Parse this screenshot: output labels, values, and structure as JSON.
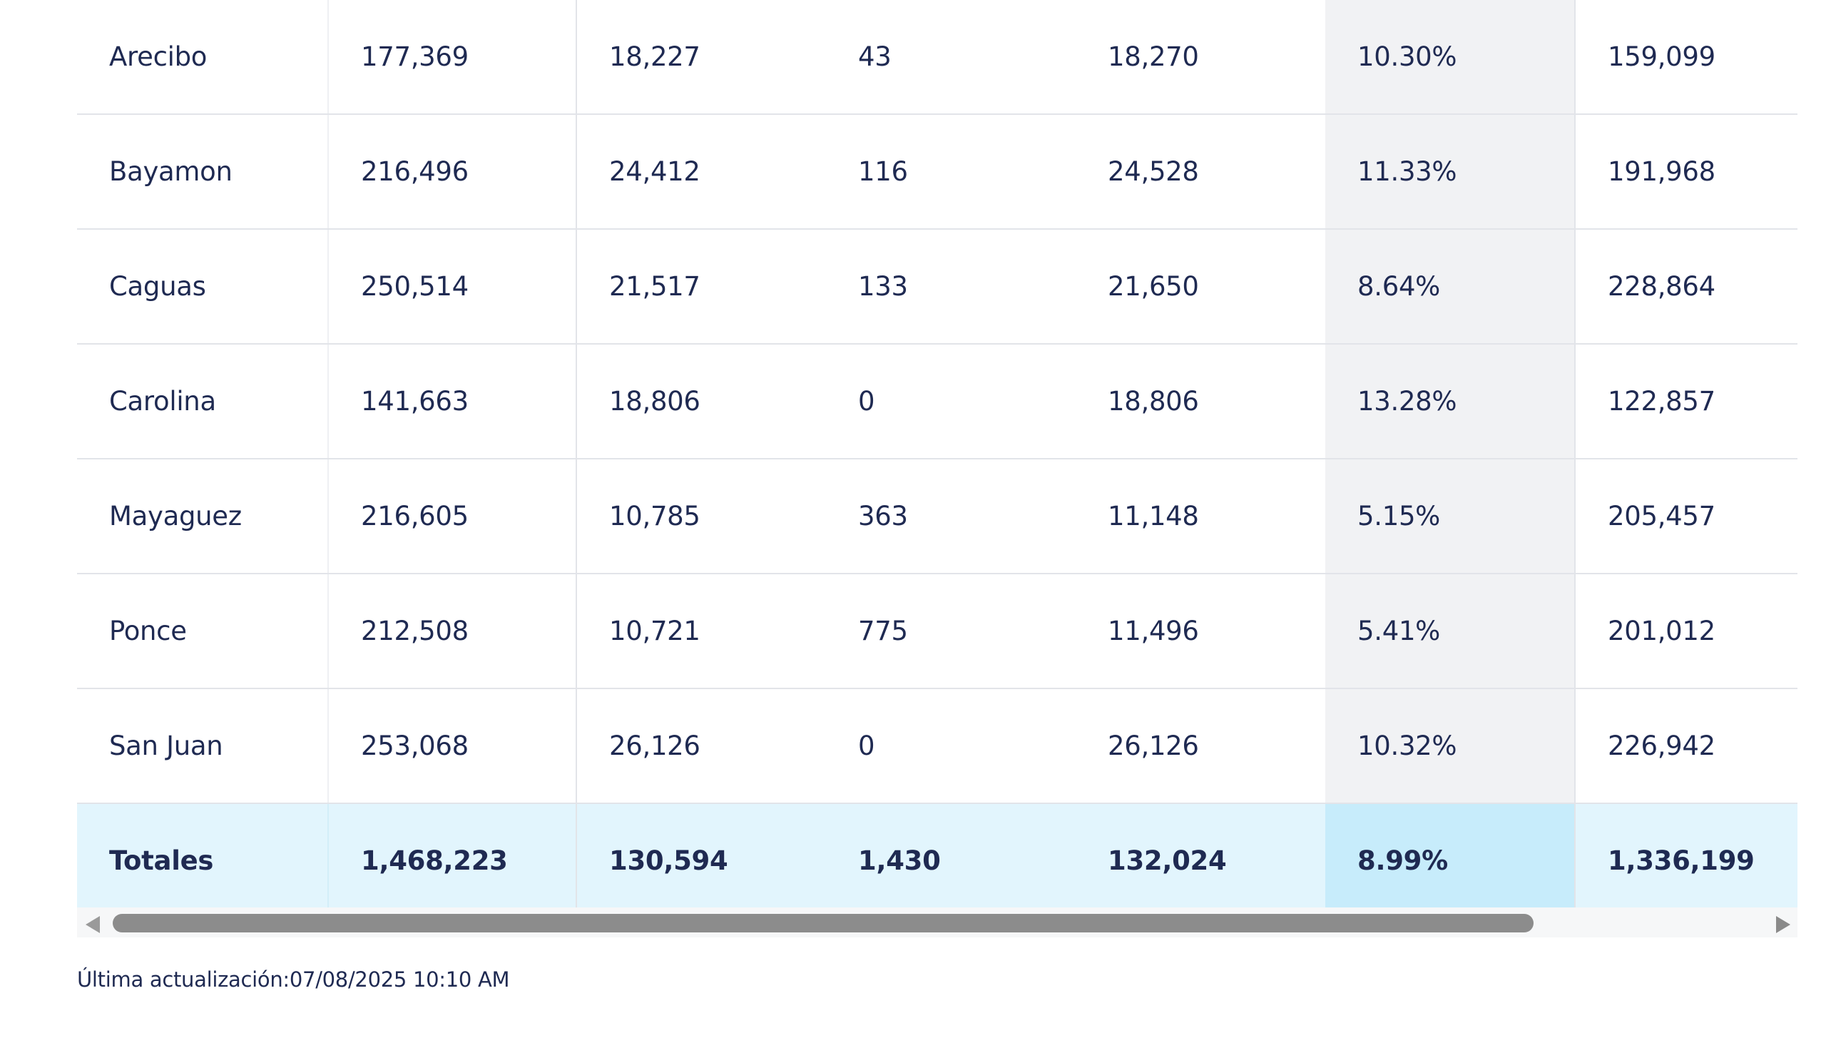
{
  "table": {
    "rows": [
      [
        "Arecibo",
        "177,369",
        "18,227",
        "43",
        "18,270",
        "10.30%",
        "159,099"
      ],
      [
        "Bayamon",
        "216,496",
        "24,412",
        "116",
        "24,528",
        "11.33%",
        "191,968"
      ],
      [
        "Caguas",
        "250,514",
        "21,517",
        "133",
        "21,650",
        "8.64%",
        "228,864"
      ],
      [
        "Carolina",
        "141,663",
        "18,806",
        "0",
        "18,806",
        "13.28%",
        "122,857"
      ],
      [
        "Mayaguez",
        "216,605",
        "10,785",
        "363",
        "11,148",
        "5.15%",
        "205,457"
      ],
      [
        "Ponce",
        "212,508",
        "10,721",
        "775",
        "11,496",
        "5.41%",
        "201,012"
      ],
      [
        "San Juan",
        "253,068",
        "26,126",
        "0",
        "26,126",
        "10.32%",
        "226,942"
      ]
    ],
    "totals": [
      "Totales",
      "1,468,223",
      "130,594",
      "1,430",
      "132,024",
      "8.99%",
      "1,336,199"
    ]
  },
  "scrollbar": {
    "left_icon": "triangle-left-icon",
    "right_icon": "triangle-right-icon"
  },
  "footer": {
    "last_updated": "Última actualización:07/08/2025 10:10 AM"
  },
  "colors": {
    "text": "#1f2a52",
    "highlight_column": "#f1f2f4",
    "totals_row": "#e2f5fd",
    "totals_highlight": "#c7ecfb",
    "scroll_thumb": "#8c8c8c"
  }
}
